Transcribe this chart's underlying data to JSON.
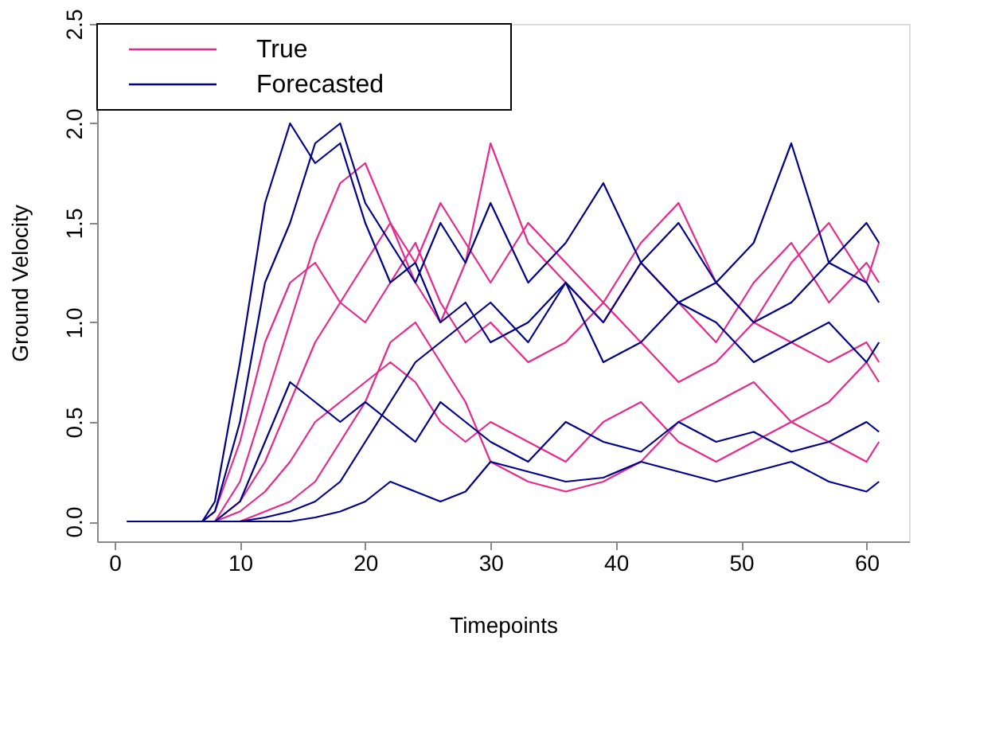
{
  "chart_data": {
    "type": "line",
    "xlabel": "Timepoints",
    "ylabel": "Ground Velocity",
    "x": [
      1,
      7,
      8,
      10,
      12,
      14,
      16,
      18,
      20,
      22,
      24,
      26,
      28,
      30,
      33,
      36,
      39,
      42,
      45,
      48,
      51,
      54,
      57,
      60,
      61
    ],
    "xlim": [
      -1.4,
      63.4
    ],
    "xticks": [
      0,
      10,
      20,
      30,
      40,
      50,
      60
    ],
    "ylim": [
      -0.1,
      2.5
    ],
    "yticks": [
      {
        "value": 0,
        "label": "0.0"
      },
      0.5,
      {
        "value": 1,
        "label": "1.0"
      },
      1.5,
      {
        "value": 2,
        "label": "2.0"
      },
      2.5
    ],
    "grid": false,
    "legend": "top left",
    "line_style": "solid",
    "marker": "none",
    "series": [
      {
        "name": "True",
        "color": "#e7298a",
        "values": [
          0,
          0,
          0.05,
          0.4,
          0.9,
          1.2,
          1.3,
          1.1,
          1.0,
          1.2,
          1.4,
          1.1,
          0.9,
          1.0,
          0.8,
          0.9,
          1.1,
          0.9,
          0.7,
          0.8,
          1.0,
          0.9,
          0.8,
          0.9,
          0.8
        ]
      },
      {
        "color": "#e7298a",
        "values": [
          0,
          0,
          0,
          0.1,
          0.3,
          0.6,
          0.9,
          1.1,
          1.3,
          1.5,
          1.2,
          1.0,
          1.3,
          1.9,
          1.4,
          1.2,
          1.0,
          1.3,
          1.1,
          0.9,
          1.2,
          1.4,
          1.1,
          1.3,
          1.2
        ]
      },
      {
        "color": "#e7298a",
        "values": [
          0,
          0,
          0,
          0.05,
          0.15,
          0.3,
          0.5,
          0.6,
          0.7,
          0.8,
          0.7,
          0.5,
          0.4,
          0.5,
          0.4,
          0.3,
          0.5,
          0.6,
          0.4,
          0.3,
          0.4,
          0.5,
          0.4,
          0.3,
          0.4
        ]
      },
      {
        "color": "#e7298a",
        "values": [
          0,
          0,
          0,
          0.2,
          0.6,
          1.0,
          1.4,
          1.7,
          1.8,
          1.5,
          1.3,
          1.6,
          1.4,
          1.2,
          1.5,
          1.3,
          1.1,
          1.4,
          1.6,
          1.2,
          1.0,
          1.3,
          1.5,
          1.2,
          1.4
        ]
      },
      {
        "color": "#e7298a",
        "values": [
          0,
          0,
          0,
          0,
          0.05,
          0.1,
          0.2,
          0.4,
          0.6,
          0.9,
          1.0,
          0.8,
          0.6,
          0.3,
          0.2,
          0.15,
          0.2,
          0.3,
          0.5,
          0.6,
          0.7,
          0.5,
          0.6,
          0.8,
          0.7
        ]
      },
      {
        "name": "Forecasted",
        "color": "#00008b",
        "values": [
          0,
          0,
          0.1,
          0.8,
          1.6,
          2.0,
          1.8,
          1.9,
          1.5,
          1.2,
          1.3,
          1.0,
          1.1,
          0.9,
          1.0,
          1.2,
          0.8,
          0.9,
          1.1,
          1.0,
          0.8,
          0.9,
          1.0,
          0.8,
          0.9
        ]
      },
      {
        "color": "#00008b",
        "values": [
          0,
          0,
          0,
          0,
          0.02,
          0.05,
          0.1,
          0.2,
          0.4,
          0.6,
          0.8,
          0.9,
          1.0,
          1.1,
          0.9,
          1.2,
          1.0,
          1.3,
          1.1,
          1.2,
          1.0,
          1.1,
          1.3,
          1.2,
          1.1
        ]
      },
      {
        "color": "#00008b",
        "values": [
          0,
          0,
          0,
          0,
          0,
          0,
          0.02,
          0.05,
          0.1,
          0.2,
          0.15,
          0.1,
          0.15,
          0.3,
          0.25,
          0.2,
          0.22,
          0.3,
          0.25,
          0.2,
          0.25,
          0.3,
          0.2,
          0.15,
          0.2
        ]
      },
      {
        "color": "#00008b",
        "values": [
          0,
          0,
          0.05,
          0.5,
          1.2,
          1.5,
          1.9,
          2.0,
          1.6,
          1.4,
          1.2,
          1.5,
          1.3,
          1.6,
          1.2,
          1.4,
          1.7,
          1.3,
          1.5,
          1.2,
          1.4,
          1.9,
          1.3,
          1.5,
          1.4
        ]
      },
      {
        "color": "#00008b",
        "values": [
          0,
          0,
          0,
          0.1,
          0.4,
          0.7,
          0.6,
          0.5,
          0.6,
          0.5,
          0.4,
          0.6,
          0.5,
          0.4,
          0.3,
          0.5,
          0.4,
          0.35,
          0.5,
          0.4,
          0.45,
          0.35,
          0.4,
          0.5,
          0.45
        ]
      }
    ]
  }
}
